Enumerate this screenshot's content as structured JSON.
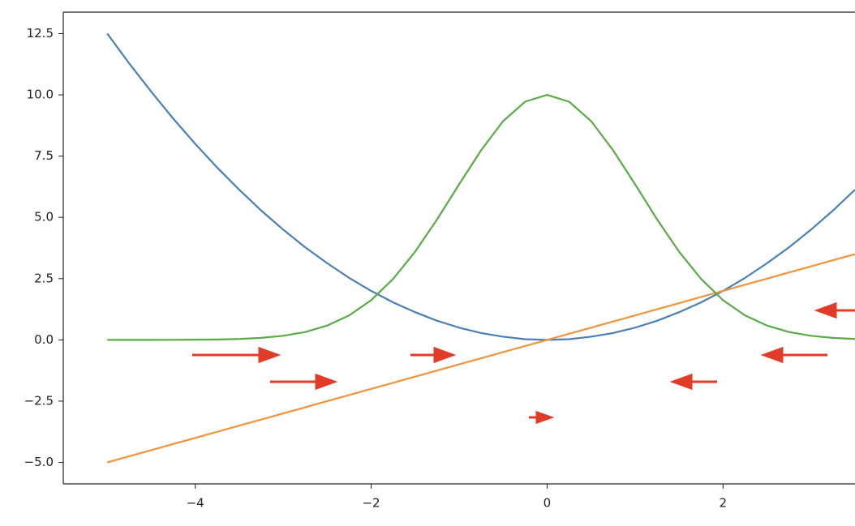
{
  "chart_data": {
    "type": "line",
    "x": [
      -5,
      -4.75,
      -4.5,
      -4.25,
      -4,
      -3.75,
      -3.5,
      -3.25,
      -3,
      -2.75,
      -2.5,
      -2.25,
      -2,
      -1.75,
      -1.5,
      -1.25,
      -1,
      -0.75,
      -0.5,
      -0.25,
      0,
      0.25,
      0.5,
      0.75,
      1,
      1.25,
      1.5,
      1.75,
      2,
      2.25,
      2.5,
      2.75,
      3,
      3.25,
      3.5
    ],
    "series": [
      {
        "color": "#4a7fb5",
        "values": [
          12.5,
          11.28,
          10.13,
          9.03,
          8,
          7.03,
          6.13,
          5.28,
          4.5,
          3.78,
          3.13,
          2.53,
          2,
          1.53,
          1.13,
          0.78,
          0.5,
          0.28,
          0.13,
          0.03,
          0,
          0.03,
          0.13,
          0.28,
          0.5,
          0.78,
          1.13,
          1.53,
          2,
          2.53,
          3.13,
          3.78,
          4.5,
          5.28,
          6.13
        ]
      },
      {
        "color": "#f0933a",
        "values": [
          -5,
          -4.75,
          -4.5,
          -4.25,
          -4,
          -3.75,
          -3.5,
          -3.25,
          -3,
          -2.75,
          -2.5,
          -2.25,
          -2,
          -1.75,
          -1.5,
          -1.25,
          -1,
          -0.75,
          -0.5,
          -0.25,
          0,
          0.25,
          0.5,
          0.75,
          1,
          1.25,
          1.5,
          1.75,
          2,
          2.25,
          2.5,
          2.75,
          3,
          3.25,
          3.5
        ]
      },
      {
        "color": "#5aaa48",
        "values": [
          0,
          0,
          0.001,
          0.003,
          0.007,
          0.017,
          0.038,
          0.082,
          0.167,
          0.321,
          0.584,
          1.0,
          1.62,
          2.49,
          3.6,
          4.92,
          6.35,
          7.74,
          8.93,
          9.72,
          10,
          9.72,
          8.93,
          7.74,
          6.35,
          4.92,
          3.6,
          2.49,
          1.62,
          1.0,
          0.584,
          0.321,
          0.167,
          0.082,
          0.038
        ]
      }
    ],
    "xlim": [
      -5.5,
      3.5
    ],
    "ylim": [
      -5.875,
      13.375
    ],
    "xticks": [
      {
        "value": -4,
        "label": "−4"
      },
      {
        "value": -2,
        "label": "−2"
      },
      0,
      2
    ],
    "yticks": [
      {
        "value": -5,
        "label": "−5.0"
      },
      {
        "value": -2.5,
        "label": "−2.5"
      },
      {
        "value": 0,
        "label": "0.0"
      },
      2.5,
      {
        "value": 5,
        "label": "5.0"
      },
      7.5,
      {
        "value": 10,
        "label": "10.0"
      },
      12.5
    ]
  }
}
